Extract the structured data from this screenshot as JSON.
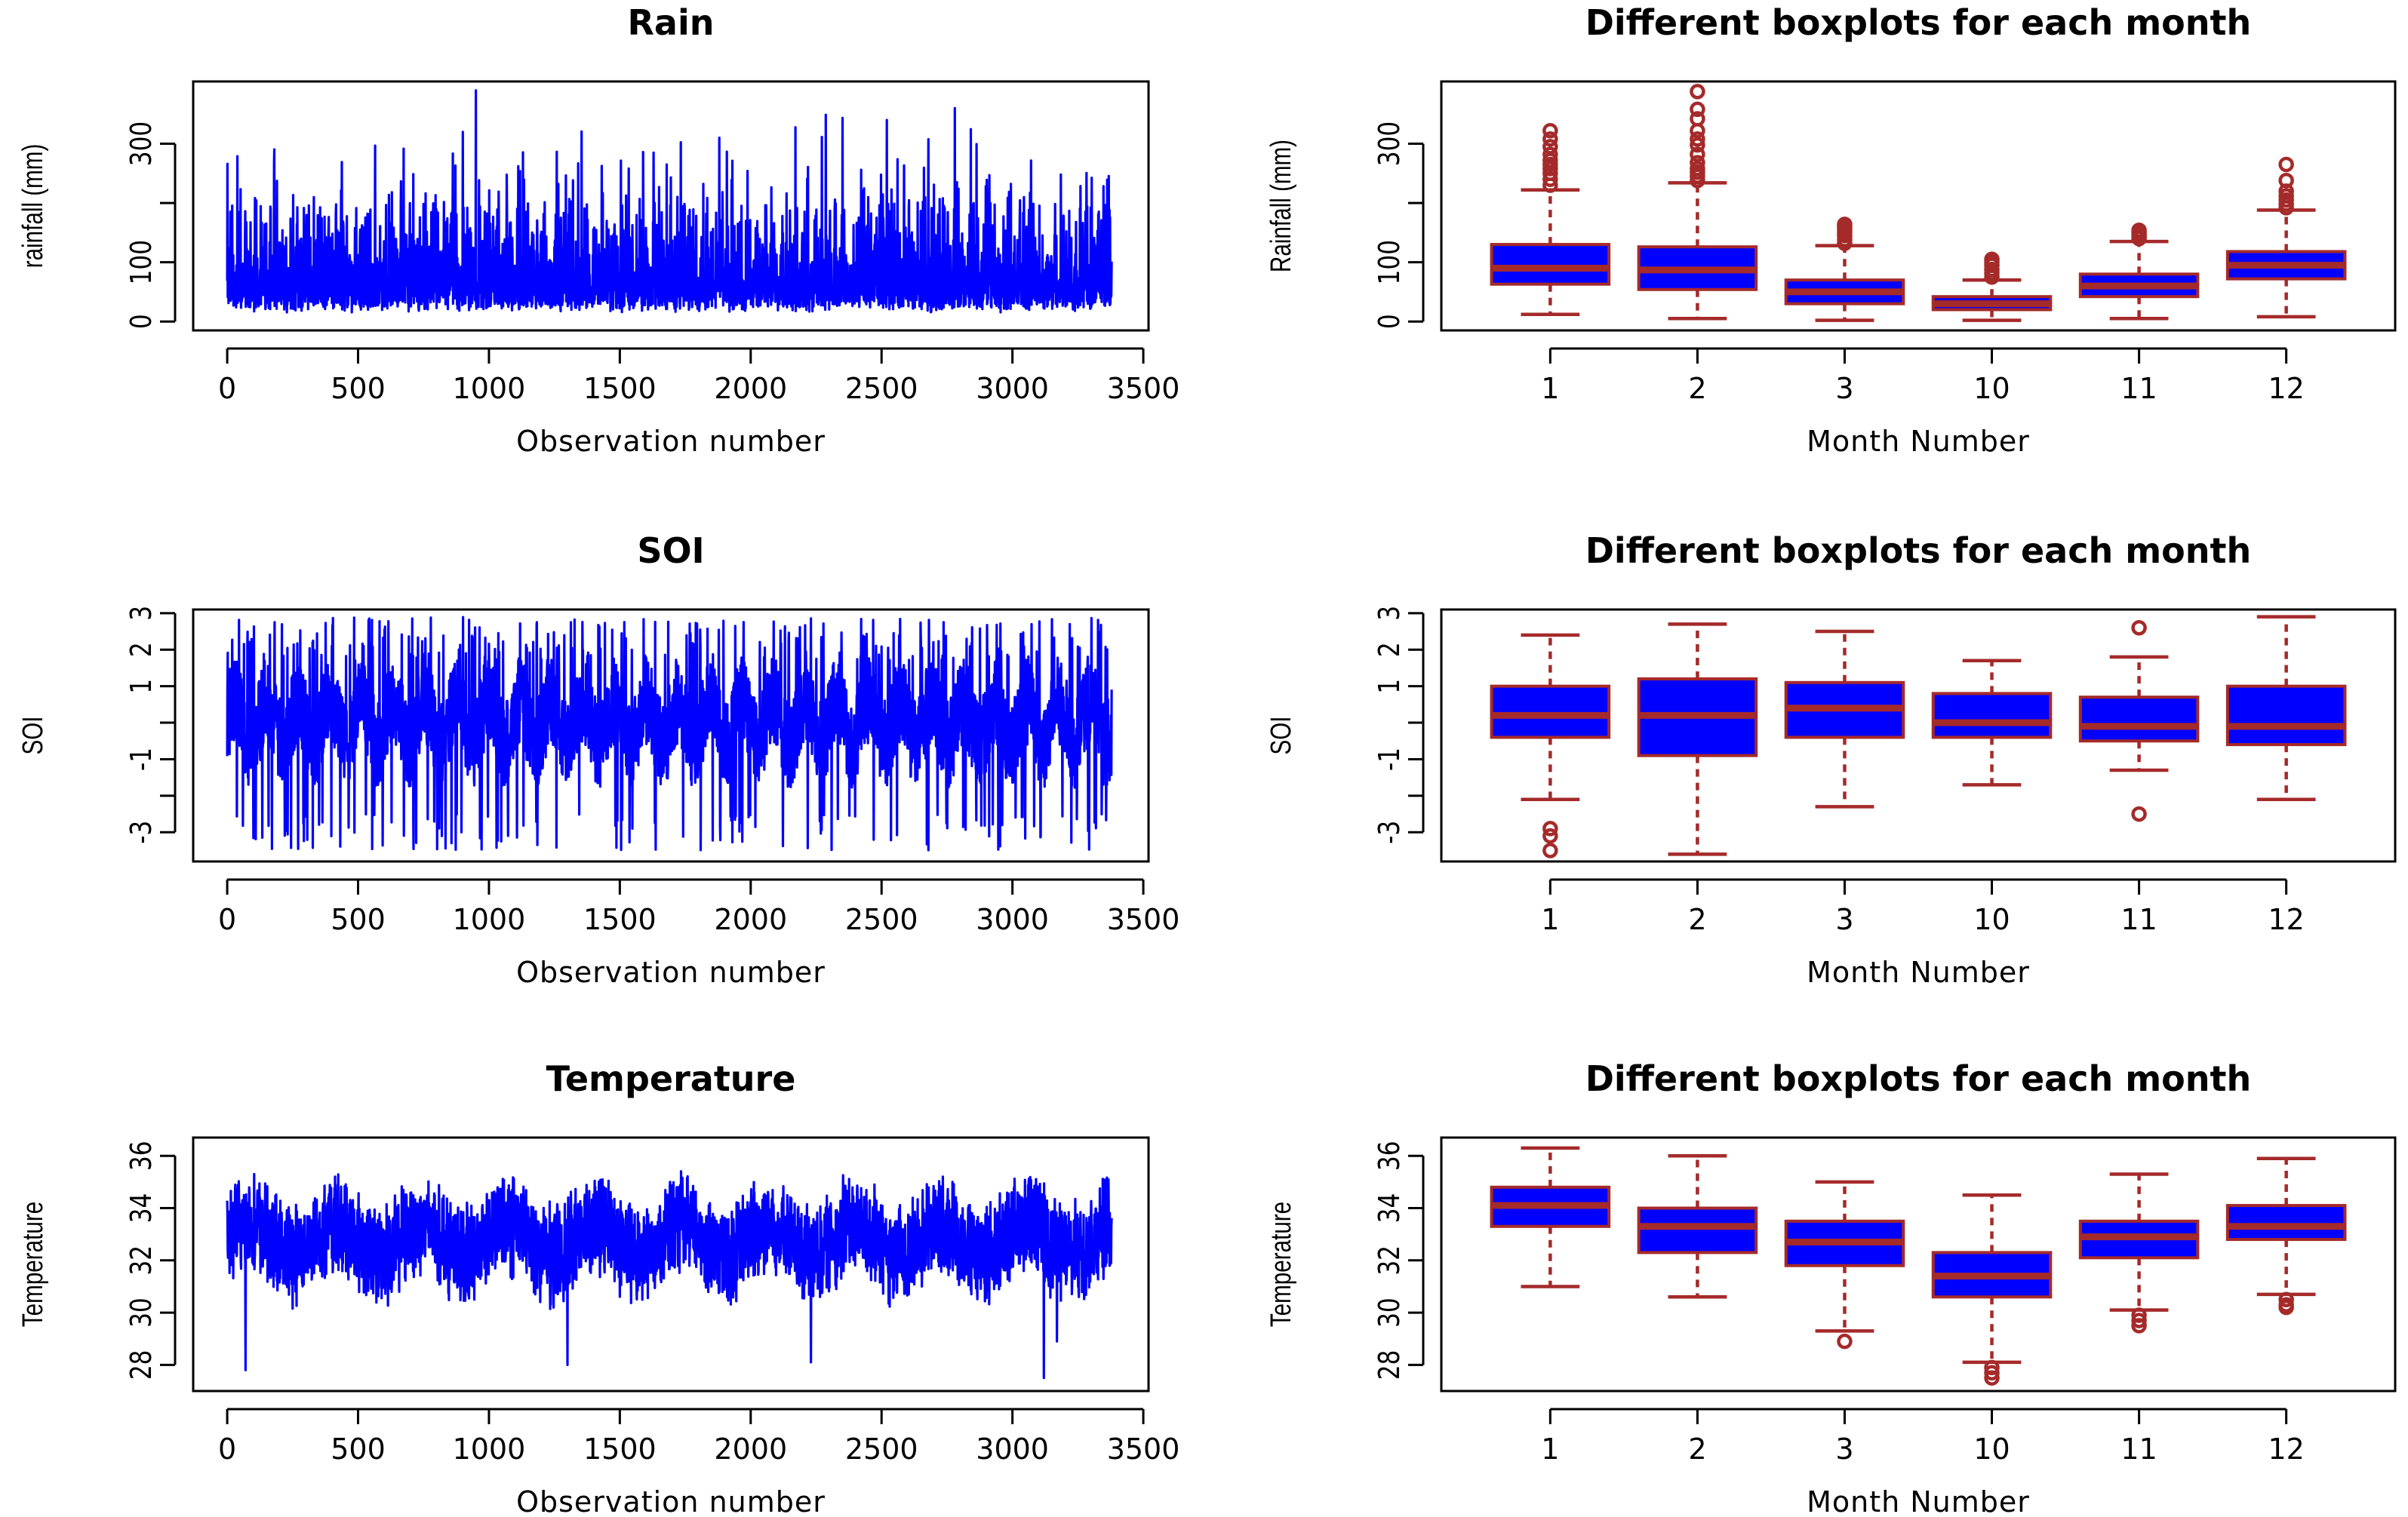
{
  "colors": {
    "series": "#0000ff",
    "box_fill": "#0000ff",
    "box_line": "#a52a2a",
    "frame": "#000000"
  },
  "chart_data": [
    {
      "id": "rain_series",
      "type": "line",
      "title": "Rain",
      "xlabel": "Observation number",
      "ylabel": "rainfall (mm)",
      "xlim": [
        -130,
        3520
      ],
      "ylim": [
        -15,
        405
      ],
      "xticks": [
        0,
        500,
        1000,
        1500,
        2000,
        2500,
        3000,
        3500
      ],
      "xtick_labels": [
        "0",
        "500",
        "1000",
        "1500",
        "2000",
        "2500",
        "3000",
        "3500"
      ],
      "yticks": [
        0,
        100,
        300
      ],
      "ytick_labels": [
        "0",
        "100",
        "300"
      ],
      "yminor": [
        200
      ],
      "n_obs": 3380,
      "signal": {
        "base": 15,
        "mean": 65,
        "cap_low": 3,
        "cap_high": 390,
        "spike_prob": 0.08,
        "spikes": [
          [
            950,
            390
          ],
          [
            2780,
            360
          ],
          [
            2520,
            340
          ],
          [
            1880,
            310
          ]
        ]
      }
    },
    {
      "id": "rain_box",
      "type": "box",
      "title": "Different boxplots for each month",
      "xlabel": "Month Number",
      "ylabel": "Rainfall (mm)",
      "ylim": [
        -15,
        405
      ],
      "yticks": [
        0,
        100,
        300
      ],
      "ytick_labels": [
        "0",
        "100",
        "300"
      ],
      "yminor": [
        200
      ],
      "categories": [
        "1",
        "2",
        "3",
        "10",
        "11",
        "12"
      ],
      "boxes": [
        {
          "label": "1",
          "lower_whisker": 12,
          "q1": 63,
          "median": 90,
          "q3": 130,
          "upper_whisker": 222,
          "outliers": [
            230,
            240,
            250,
            258,
            265,
            272,
            282,
            295,
            308,
            322
          ]
        },
        {
          "label": "2",
          "lower_whisker": 5,
          "q1": 54,
          "median": 87,
          "q3": 126,
          "upper_whisker": 234,
          "outliers": [
            238,
            245,
            252,
            258,
            268,
            282,
            298,
            308,
            322,
            342,
            358,
            388
          ]
        },
        {
          "label": "3",
          "lower_whisker": 2,
          "q1": 30,
          "median": 50,
          "q3": 70,
          "upper_whisker": 128,
          "outliers": [
            132,
            138,
            145,
            150,
            155,
            160,
            164
          ]
        },
        {
          "label": "10",
          "lower_whisker": 2,
          "q1": 20,
          "median": 30,
          "q3": 42,
          "upper_whisker": 70,
          "outliers": [
            75,
            82,
            88,
            95,
            100,
            105
          ]
        },
        {
          "label": "11",
          "lower_whisker": 5,
          "q1": 42,
          "median": 60,
          "q3": 80,
          "upper_whisker": 135,
          "outliers": [
            140,
            143,
            146,
            150,
            154
          ]
        },
        {
          "label": "12",
          "lower_whisker": 8,
          "q1": 72,
          "median": 95,
          "q3": 118,
          "upper_whisker": 188,
          "outliers": [
            192,
            198,
            205,
            212,
            220,
            238,
            265
          ]
        }
      ]
    },
    {
      "id": "soi_series",
      "type": "line",
      "title": "SOI",
      "xlabel": "Observation number",
      "ylabel": "SOI",
      "xlim": [
        -130,
        3520
      ],
      "ylim": [
        -3.8,
        3.1
      ],
      "xticks": [
        0,
        500,
        1000,
        1500,
        2000,
        2500,
        3000,
        3500
      ],
      "xtick_labels": [
        "0",
        "500",
        "1000",
        "1500",
        "2000",
        "2500",
        "3000",
        "3500"
      ],
      "yticks": [
        -3,
        -1,
        1,
        2,
        3
      ],
      "ytick_labels": [
        "-3",
        "-1",
        "1",
        "2",
        "3"
      ],
      "yminor": [
        -2,
        0
      ],
      "n_obs": 3380,
      "signal": {
        "cycle": 121,
        "amp_high": 2.9,
        "amp_low": -3.5,
        "mid": 0.0
      }
    },
    {
      "id": "soi_box",
      "type": "box",
      "title": "Different boxplots for each month",
      "xlabel": "Month Number",
      "ylabel": "SOI",
      "ylim": [
        -3.8,
        3.1
      ],
      "yticks": [
        -3,
        -1,
        1,
        2,
        3
      ],
      "ytick_labels": [
        "-3",
        "-1",
        "1",
        "2",
        "3"
      ],
      "yminor": [
        -2,
        0
      ],
      "categories": [
        "1",
        "2",
        "3",
        "10",
        "11",
        "12"
      ],
      "boxes": [
        {
          "label": "1",
          "lower_whisker": -2.1,
          "q1": -0.4,
          "median": 0.2,
          "q3": 1.0,
          "upper_whisker": 2.4,
          "outliers": [
            -2.9,
            -3.1,
            -3.5
          ]
        },
        {
          "label": "2",
          "lower_whisker": -3.6,
          "q1": -0.9,
          "median": 0.2,
          "q3": 1.2,
          "upper_whisker": 2.7,
          "outliers": []
        },
        {
          "label": "3",
          "lower_whisker": -2.3,
          "q1": -0.4,
          "median": 0.4,
          "q3": 1.1,
          "upper_whisker": 2.5,
          "outliers": []
        },
        {
          "label": "10",
          "lower_whisker": -1.7,
          "q1": -0.4,
          "median": 0.0,
          "q3": 0.8,
          "upper_whisker": 1.7,
          "outliers": []
        },
        {
          "label": "11",
          "lower_whisker": -1.3,
          "q1": -0.5,
          "median": -0.1,
          "q3": 0.7,
          "upper_whisker": 1.8,
          "outliers": [
            2.6,
            -2.5
          ]
        },
        {
          "label": "12",
          "lower_whisker": -2.1,
          "q1": -0.6,
          "median": -0.1,
          "q3": 1.0,
          "upper_whisker": 2.9,
          "outliers": []
        }
      ]
    },
    {
      "id": "temp_series",
      "type": "line",
      "title": "Temperature",
      "xlabel": "Observation number",
      "ylabel": "Temperature",
      "xlim": [
        -130,
        3520
      ],
      "ylim": [
        27.0,
        36.7
      ],
      "xticks": [
        0,
        500,
        1000,
        1500,
        2000,
        2500,
        3000,
        3500
      ],
      "xtick_labels": [
        "0",
        "500",
        "1000",
        "1500",
        "2000",
        "2500",
        "3000",
        "3500"
      ],
      "yticks": [
        28,
        30,
        32,
        34,
        36
      ],
      "ytick_labels": [
        "28",
        "30",
        "32",
        "34",
        "36"
      ],
      "yminor": [],
      "n_obs": 3380,
      "signal": {
        "mean": 32.8,
        "amp": 1.5,
        "noise": 1.3,
        "min": 27.5,
        "max": 36.2,
        "dips": [
          [
            70,
            27.8
          ],
          [
            1300,
            28.0
          ],
          [
            2230,
            28.1
          ],
          [
            3120,
            27.5
          ],
          [
            3170,
            28.9
          ]
        ]
      }
    },
    {
      "id": "temp_box",
      "type": "box",
      "title": "Different boxplots for each month",
      "xlabel": "Month Number",
      "ylabel": "Temperature",
      "ylim": [
        27.0,
        36.7
      ],
      "yticks": [
        28,
        30,
        32,
        34,
        36
      ],
      "ytick_labels": [
        "28",
        "30",
        "32",
        "34",
        "36"
      ],
      "yminor": [],
      "categories": [
        "1",
        "2",
        "3",
        "10",
        "11",
        "12"
      ],
      "boxes": [
        {
          "label": "1",
          "lower_whisker": 31.0,
          "q1": 33.3,
          "median": 34.1,
          "q3": 34.8,
          "upper_whisker": 36.3,
          "outliers": []
        },
        {
          "label": "2",
          "lower_whisker": 30.6,
          "q1": 32.3,
          "median": 33.3,
          "q3": 34.0,
          "upper_whisker": 36.0,
          "outliers": []
        },
        {
          "label": "3",
          "lower_whisker": 29.3,
          "q1": 31.8,
          "median": 32.7,
          "q3": 33.5,
          "upper_whisker": 35.0,
          "outliers": [
            28.9
          ]
        },
        {
          "label": "10",
          "lower_whisker": 28.1,
          "q1": 30.6,
          "median": 31.4,
          "q3": 32.3,
          "upper_whisker": 34.5,
          "outliers": [
            27.9,
            27.7,
            27.5
          ]
        },
        {
          "label": "11",
          "lower_whisker": 30.1,
          "q1": 32.1,
          "median": 32.9,
          "q3": 33.5,
          "upper_whisker": 35.3,
          "outliers": [
            29.9,
            29.7,
            29.5
          ]
        },
        {
          "label": "12",
          "lower_whisker": 30.7,
          "q1": 32.8,
          "median": 33.3,
          "q3": 34.1,
          "upper_whisker": 35.9,
          "outliers": [
            30.5,
            30.3,
            30.2
          ]
        }
      ]
    }
  ]
}
